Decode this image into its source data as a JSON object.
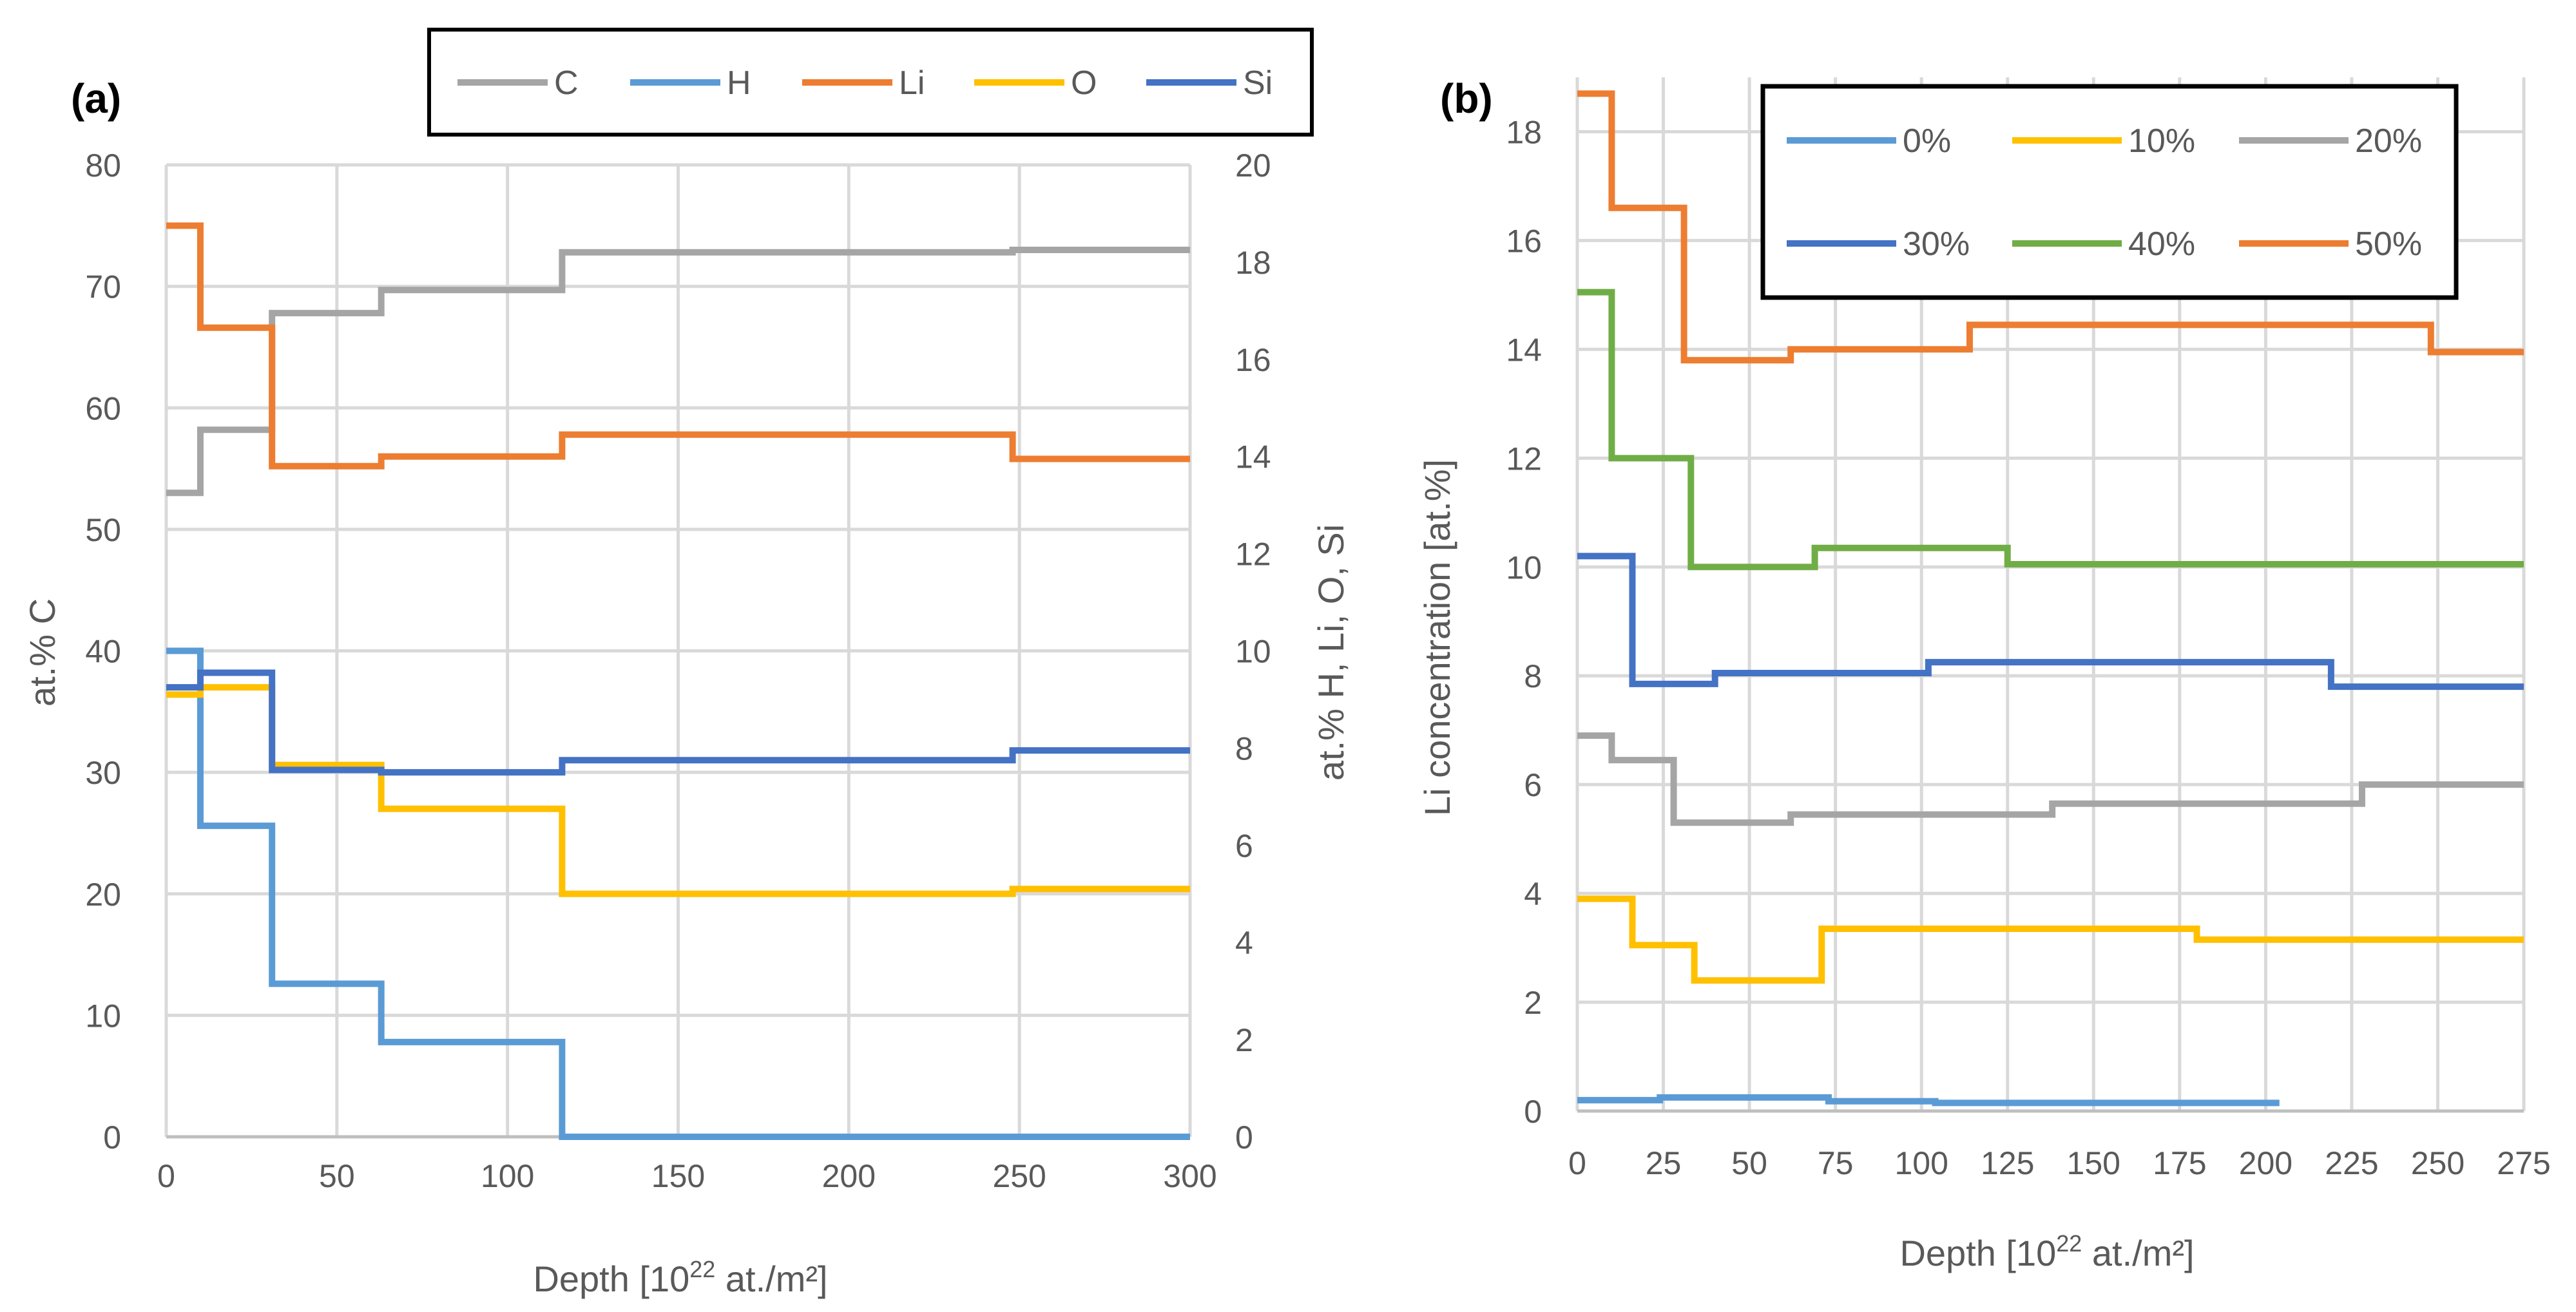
{
  "chart_data": [
    {
      "type": "line",
      "panel_label": "(a)",
      "xlabel_prefix": "Depth [10",
      "xlabel_sup": "22",
      "xlabel_suffix": " at./m²]",
      "ylabel": "at.% C",
      "y2label": "at.% H, Li, O, Si",
      "xlim": [
        0,
        300
      ],
      "ylim": [
        0,
        80
      ],
      "y2lim": [
        0,
        20
      ],
      "xticks": [
        0,
        50,
        100,
        150,
        200,
        250,
        300
      ],
      "yticks": [
        0,
        10,
        20,
        30,
        40,
        50,
        60,
        70,
        80
      ],
      "y2ticks": [
        0,
        2,
        4,
        6,
        8,
        10,
        12,
        14,
        16,
        18,
        20
      ],
      "grid": true,
      "legend_position": "top",
      "series": [
        {
          "name": "C",
          "color": "#A5A5A5",
          "axis": "left",
          "step_x": [
            0,
            10,
            31,
            63,
            116,
            248,
            300
          ],
          "values": [
            53,
            58.2,
            67.8,
            69.7,
            72.8,
            73
          ]
        },
        {
          "name": "H",
          "color": "#5B9BD5",
          "axis": "right",
          "step_x": [
            0,
            10,
            31,
            63,
            116,
            248,
            300
          ],
          "values": [
            10,
            6.4,
            3.15,
            1.95,
            0,
            0
          ]
        },
        {
          "name": "Li",
          "color": "#ED7D31",
          "axis": "right",
          "step_x": [
            0,
            10,
            31,
            63,
            116,
            248,
            300
          ],
          "values": [
            18.75,
            16.65,
            13.8,
            14,
            14.45,
            13.95
          ]
        },
        {
          "name": "O",
          "color": "#FFC000",
          "axis": "right",
          "step_x": [
            0,
            10,
            31,
            63,
            116,
            248,
            300
          ],
          "values": [
            9.1,
            9.25,
            7.65,
            6.75,
            5,
            5.1
          ]
        },
        {
          "name": "Si",
          "color": "#4472C4",
          "axis": "right",
          "step_x": [
            0,
            10,
            31,
            63,
            116,
            248,
            300
          ],
          "values": [
            9.25,
            9.55,
            7.55,
            7.5,
            7.75,
            7.95
          ]
        }
      ]
    },
    {
      "type": "line",
      "panel_label": "(b)",
      "xlabel_prefix": "Depth [10",
      "xlabel_sup": "22",
      "xlabel_suffix": " at./m²]",
      "ylabel": "Li concentration [at.%]",
      "xlim": [
        0,
        275
      ],
      "ylim": [
        0,
        19
      ],
      "xticks": [
        0,
        25,
        50,
        75,
        100,
        125,
        150,
        175,
        200,
        225,
        250,
        275
      ],
      "yticks": [
        0,
        2,
        4,
        6,
        8,
        10,
        12,
        14,
        16,
        18
      ],
      "grid": true,
      "legend_position": "top-right",
      "series": [
        {
          "name": "0%",
          "color": "#5B9BD5",
          "step_x": [
            0,
            24,
            73,
            104,
            204
          ],
          "values": [
            0.2,
            0.25,
            0.18,
            0.15
          ]
        },
        {
          "name": "10%",
          "color": "#FFC000",
          "step_x": [
            0,
            16,
            34,
            71,
            180,
            275
          ],
          "values": [
            3.9,
            3.05,
            2.4,
            3.35,
            3.15
          ]
        },
        {
          "name": "20%",
          "color": "#A5A5A5",
          "step_x": [
            0,
            10,
            28,
            62,
            138,
            228,
            275
          ],
          "values": [
            6.9,
            6.45,
            5.3,
            5.45,
            5.65,
            6
          ]
        },
        {
          "name": "30%",
          "color": "#4472C4",
          "step_x": [
            0,
            16,
            40,
            102,
            219,
            275
          ],
          "values": [
            10.2,
            7.85,
            8.05,
            8.25,
            7.8
          ]
        },
        {
          "name": "40%",
          "color": "#70AD47",
          "step_x": [
            0,
            10,
            33,
            69,
            125,
            275
          ],
          "values": [
            15.05,
            12,
            10,
            10.35,
            10.05
          ]
        },
        {
          "name": "50%",
          "color": "#ED7D31",
          "step_x": [
            0,
            10,
            31,
            62,
            114,
            248,
            275
          ],
          "values": [
            18.7,
            16.6,
            13.8,
            14,
            14.45,
            13.95
          ]
        }
      ]
    }
  ]
}
